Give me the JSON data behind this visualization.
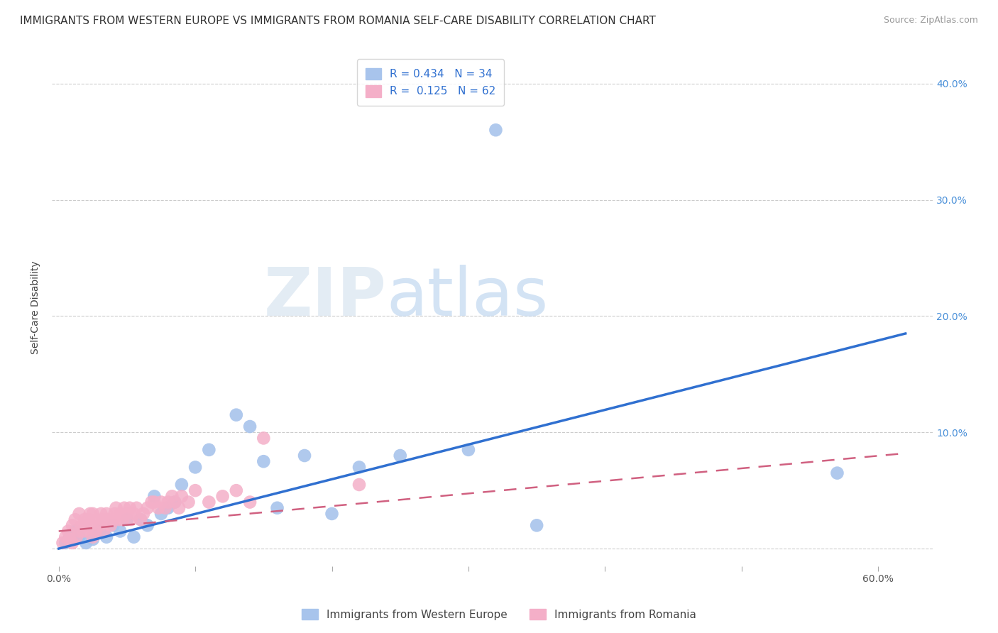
{
  "title": "IMMIGRANTS FROM WESTERN EUROPE VS IMMIGRANTS FROM ROMANIA SELF-CARE DISABILITY CORRELATION CHART",
  "source": "Source: ZipAtlas.com",
  "ylabel": "Self-Care Disability",
  "x_ticks": [
    0.0,
    0.1,
    0.2,
    0.3,
    0.4,
    0.5,
    0.6
  ],
  "x_tick_labels": [
    "0.0%",
    "",
    "",
    "",
    "",
    "",
    "60.0%"
  ],
  "y_ticks": [
    0.0,
    0.1,
    0.2,
    0.3,
    0.4
  ],
  "y_tick_labels_right": [
    "",
    "10.0%",
    "20.0%",
    "30.0%",
    "40.0%"
  ],
  "xlim": [
    -0.005,
    0.64
  ],
  "ylim": [
    -0.015,
    0.43
  ],
  "blue_color": "#a8c4ec",
  "pink_color": "#f4afc8",
  "blue_line_color": "#3070d0",
  "pink_line_color": "#d06080",
  "R_blue": 0.434,
  "N_blue": 34,
  "R_pink": 0.125,
  "N_pink": 62,
  "legend_label_blue": "Immigrants from Western Europe",
  "legend_label_pink": "Immigrants from Romania",
  "watermark_zip": "ZIP",
  "watermark_atlas": "atlas",
  "blue_scatter_x": [
    0.005,
    0.008,
    0.01,
    0.012,
    0.015,
    0.02,
    0.025,
    0.03,
    0.035,
    0.04,
    0.045,
    0.05,
    0.055,
    0.06,
    0.065,
    0.07,
    0.075,
    0.08,
    0.085,
    0.09,
    0.1,
    0.11,
    0.13,
    0.14,
    0.15,
    0.16,
    0.18,
    0.2,
    0.22,
    0.25,
    0.3,
    0.35,
    0.57,
    0.32
  ],
  "blue_scatter_y": [
    0.005,
    0.01,
    0.008,
    0.015,
    0.01,
    0.005,
    0.008,
    0.015,
    0.01,
    0.02,
    0.015,
    0.025,
    0.01,
    0.025,
    0.02,
    0.045,
    0.03,
    0.035,
    0.04,
    0.055,
    0.07,
    0.085,
    0.115,
    0.105,
    0.075,
    0.035,
    0.08,
    0.03,
    0.07,
    0.08,
    0.085,
    0.02,
    0.065,
    0.36
  ],
  "pink_scatter_x": [
    0.003,
    0.005,
    0.007,
    0.008,
    0.01,
    0.01,
    0.012,
    0.013,
    0.015,
    0.015,
    0.017,
    0.018,
    0.019,
    0.02,
    0.021,
    0.022,
    0.023,
    0.024,
    0.025,
    0.025,
    0.027,
    0.028,
    0.03,
    0.031,
    0.032,
    0.033,
    0.035,
    0.036,
    0.038,
    0.04,
    0.041,
    0.042,
    0.044,
    0.045,
    0.047,
    0.048,
    0.05,
    0.052,
    0.053,
    0.055,
    0.057,
    0.06,
    0.062,
    0.065,
    0.068,
    0.07,
    0.073,
    0.075,
    0.078,
    0.08,
    0.083,
    0.085,
    0.088,
    0.09,
    0.095,
    0.1,
    0.11,
    0.12,
    0.13,
    0.14,
    0.15,
    0.22
  ],
  "pink_scatter_y": [
    0.005,
    0.01,
    0.015,
    0.008,
    0.02,
    0.005,
    0.025,
    0.01,
    0.03,
    0.015,
    0.02,
    0.015,
    0.025,
    0.02,
    0.015,
    0.025,
    0.03,
    0.02,
    0.03,
    0.01,
    0.015,
    0.025,
    0.02,
    0.03,
    0.025,
    0.015,
    0.03,
    0.025,
    0.02,
    0.025,
    0.03,
    0.035,
    0.025,
    0.03,
    0.025,
    0.035,
    0.03,
    0.035,
    0.025,
    0.03,
    0.035,
    0.025,
    0.03,
    0.035,
    0.04,
    0.04,
    0.035,
    0.04,
    0.035,
    0.04,
    0.045,
    0.04,
    0.035,
    0.045,
    0.04,
    0.05,
    0.04,
    0.045,
    0.05,
    0.04,
    0.095,
    0.055
  ],
  "blue_line_x0": 0.0,
  "blue_line_y0": 0.0,
  "blue_line_x1": 0.62,
  "blue_line_y1": 0.185,
  "pink_line_x0": 0.0,
  "pink_line_y0": 0.015,
  "pink_line_x1": 0.62,
  "pink_line_y1": 0.082,
  "title_fontsize": 11,
  "source_fontsize": 9,
  "axis_label_fontsize": 10,
  "tick_fontsize": 10,
  "legend_fontsize": 11,
  "background_color": "#ffffff",
  "grid_color": "#cccccc",
  "right_ytick_color": "#4a90d9"
}
